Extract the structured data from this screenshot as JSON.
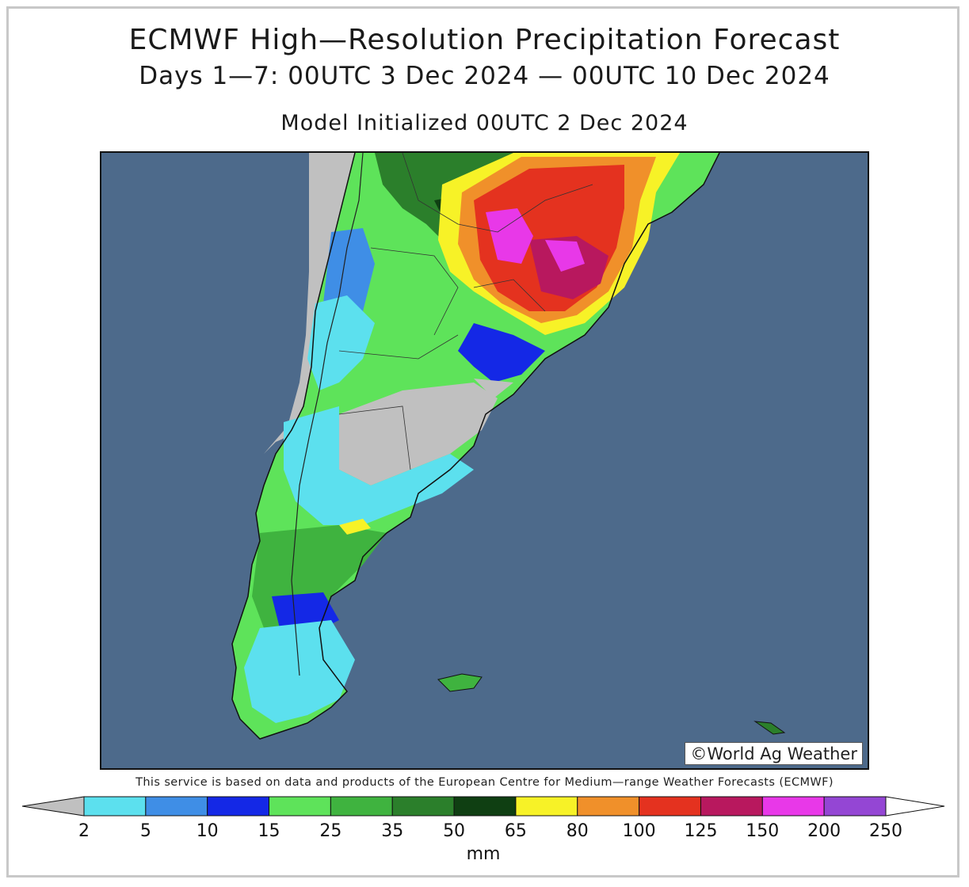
{
  "title": "ECMWF High—Resolution Precipitation Forecast",
  "subtitle": "Days 1—7: 00UTC 3 Dec 2024 — 00UTC 10 Dec 2024",
  "init": "Model Initialized 00UTC 2 Dec 2024",
  "copyright": "©World Ag Weather",
  "disclaimer": "This service is based on data and products of the European Centre for Medium—range Weather Forecasts (ECMWF)",
  "legend": {
    "unit": "mm",
    "ticks": [
      "2",
      "5",
      "10",
      "15",
      "25",
      "35",
      "50",
      "65",
      "80",
      "100",
      "125",
      "150",
      "200",
      "250"
    ],
    "colors": [
      "#c0c0c0",
      "#5ce0ee",
      "#3f8ee6",
      "#1428e6",
      "#5ee35a",
      "#3fb33f",
      "#2b7f2b",
      "#0f3f12",
      "#f7f227",
      "#f0902a",
      "#e4321f",
      "#b8185e",
      "#e838e8",
      "#9446d4",
      "#ffffff"
    ]
  },
  "map": {
    "ocean_color": "#4d6a8b",
    "land_no_precip_color": "#c0c0c0",
    "region": "Southern South America (Argentina, Chile, Uruguay, Southern Brazil)"
  }
}
